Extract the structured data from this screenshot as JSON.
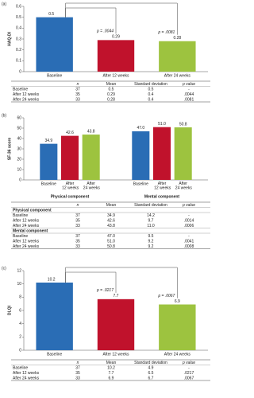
{
  "chart_data": [
    {
      "type": "bar",
      "panel": "(a)",
      "ylabel": "HAQ-DI",
      "categories": [
        "Baseline",
        "After 12 weeks",
        "After 24 weeks"
      ],
      "values": [
        0.5,
        0.29,
        0.28
      ],
      "colors": [
        "#2a6db5",
        "#c0122c",
        "#9dc33f"
      ],
      "ylim": [
        0,
        0.6
      ],
      "yticks": [
        0,
        0.1,
        0.2,
        0.3,
        0.4,
        0.5,
        0.6
      ],
      "annotations": [
        "p = .0044",
        "p = .0081"
      ]
    },
    {
      "type": "grouped_bar",
      "panel": "(b)",
      "ylabel": "SF-36 score",
      "categories": [
        "Physical component",
        "Mental component"
      ],
      "series": [
        {
          "name": "Baseline",
          "color": "#2a6db5",
          "values": [
            34.9,
            47.0
          ],
          "value_labels": [
            "34.9",
            "47.0"
          ]
        },
        {
          "name": "After 12 weeks",
          "color": "#c0122c",
          "values": [
            42.6,
            51.0
          ],
          "value_labels": [
            "42.6",
            "51.0"
          ]
        },
        {
          "name": "After 24 weeks",
          "color": "#9dc33f",
          "values": [
            43.8,
            50.8
          ],
          "value_labels": [
            "43.8",
            "50.8"
          ]
        }
      ],
      "ylim": [
        0,
        60
      ],
      "yticks": [
        0,
        10,
        20,
        30,
        40,
        50,
        60
      ]
    },
    {
      "type": "bar",
      "panel": "(c)",
      "ylabel": "DLQI",
      "categories": [
        "Baseline",
        "After 12 weeks",
        "After 24 weeks"
      ],
      "values": [
        10.2,
        7.7,
        6.9
      ],
      "colors": [
        "#2a6db5",
        "#c0122c",
        "#9dc33f"
      ],
      "ylim": [
        0,
        12
      ],
      "yticks": [
        0,
        2,
        4,
        6,
        8,
        10,
        12
      ],
      "annotations": [
        "p = .0217",
        "p = .0067"
      ]
    }
  ],
  "tables": [
    {
      "columns": [
        "n",
        "Mean",
        "Standard deviation",
        "p value"
      ],
      "rows": [
        [
          "Baseline",
          "37",
          "0.5",
          "0.5",
          "-"
        ],
        [
          "After 12 weeks",
          "35",
          "0.29",
          "0.4",
          ".0044"
        ],
        [
          "After 24 weeks",
          "33",
          "0.28",
          "0.4",
          ".0081"
        ]
      ]
    },
    {
      "columns": [
        "n",
        "Mean",
        "Standard deviation",
        "p value"
      ],
      "sections": [
        {
          "title": "Physical component",
          "rows": [
            [
              "Baseline",
              "37",
              "34.9",
              "14.2",
              "-"
            ],
            [
              "After 12 weeks",
              "35",
              "42.6",
              "9.7",
              ".0014"
            ],
            [
              "After 24 weeks",
              "33",
              "43.8",
              "11.0",
              ".0006"
            ]
          ]
        },
        {
          "title": "Mental component",
          "rows": [
            [
              "Baseline",
              "37",
              "47.0",
              "9.5",
              "-"
            ],
            [
              "After 12 weeks",
              "35",
              "51.0",
              "9.2",
              ".0041"
            ],
            [
              "After 24 weeks",
              "33",
              "50.8",
              "9.2",
              ".0008"
            ]
          ]
        }
      ]
    },
    {
      "columns": [
        "n",
        "Mean",
        "Standard deviation",
        "p value"
      ],
      "rows": [
        [
          "Baseline",
          "37",
          "10.2",
          "4.9",
          "-"
        ],
        [
          "After 12 weeks",
          "35",
          "7.7",
          "6.5",
          ".0217"
        ],
        [
          "After 24 weeks",
          "33",
          "6.9",
          "6.7",
          ".0067"
        ]
      ]
    }
  ]
}
